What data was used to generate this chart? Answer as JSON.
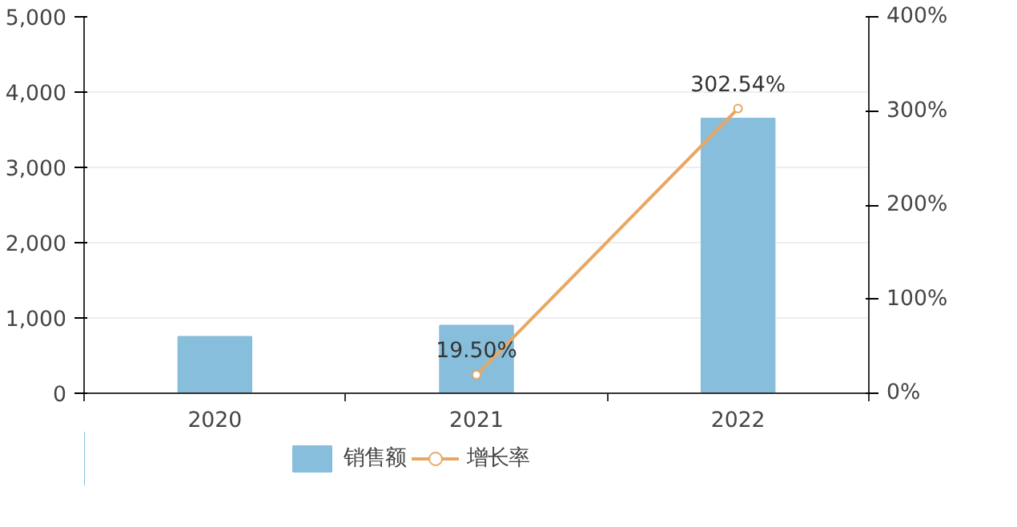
{
  "chart_data": {
    "type": "bar",
    "categories": [
      "2020",
      "2021",
      "2022"
    ],
    "series": [
      {
        "name": "销售额",
        "color": "#86bedb",
        "values": [
          750,
          900,
          3650
        ]
      },
      {
        "name": "增长率",
        "type": "line",
        "axis": "y2",
        "color": "#e8a864",
        "marker": "circle",
        "values": [
          null,
          19.5,
          302.54
        ],
        "value_labels": [
          null,
          "19.50%",
          "302.54%"
        ]
      }
    ],
    "ylim": [
      0,
      5000
    ],
    "yticks": [
      0,
      {
        "value": 1000,
        "label": "1,000"
      },
      {
        "value": 2000,
        "label": "2,000"
      },
      {
        "value": 3000,
        "label": "3,000"
      },
      {
        "value": 4000,
        "label": "4,000"
      },
      {
        "value": 5000,
        "label": "5,000"
      }
    ],
    "y2lim": [
      0,
      400
    ],
    "y2ticks": [
      {
        "value": 0,
        "label": "0%"
      },
      {
        "value": 100,
        "label": "100%"
      },
      {
        "value": 200,
        "label": "200%"
      },
      {
        "value": 300,
        "label": "300%"
      },
      {
        "value": 400,
        "label": "400%"
      }
    ],
    "grid": "y",
    "legend": "bottom"
  }
}
